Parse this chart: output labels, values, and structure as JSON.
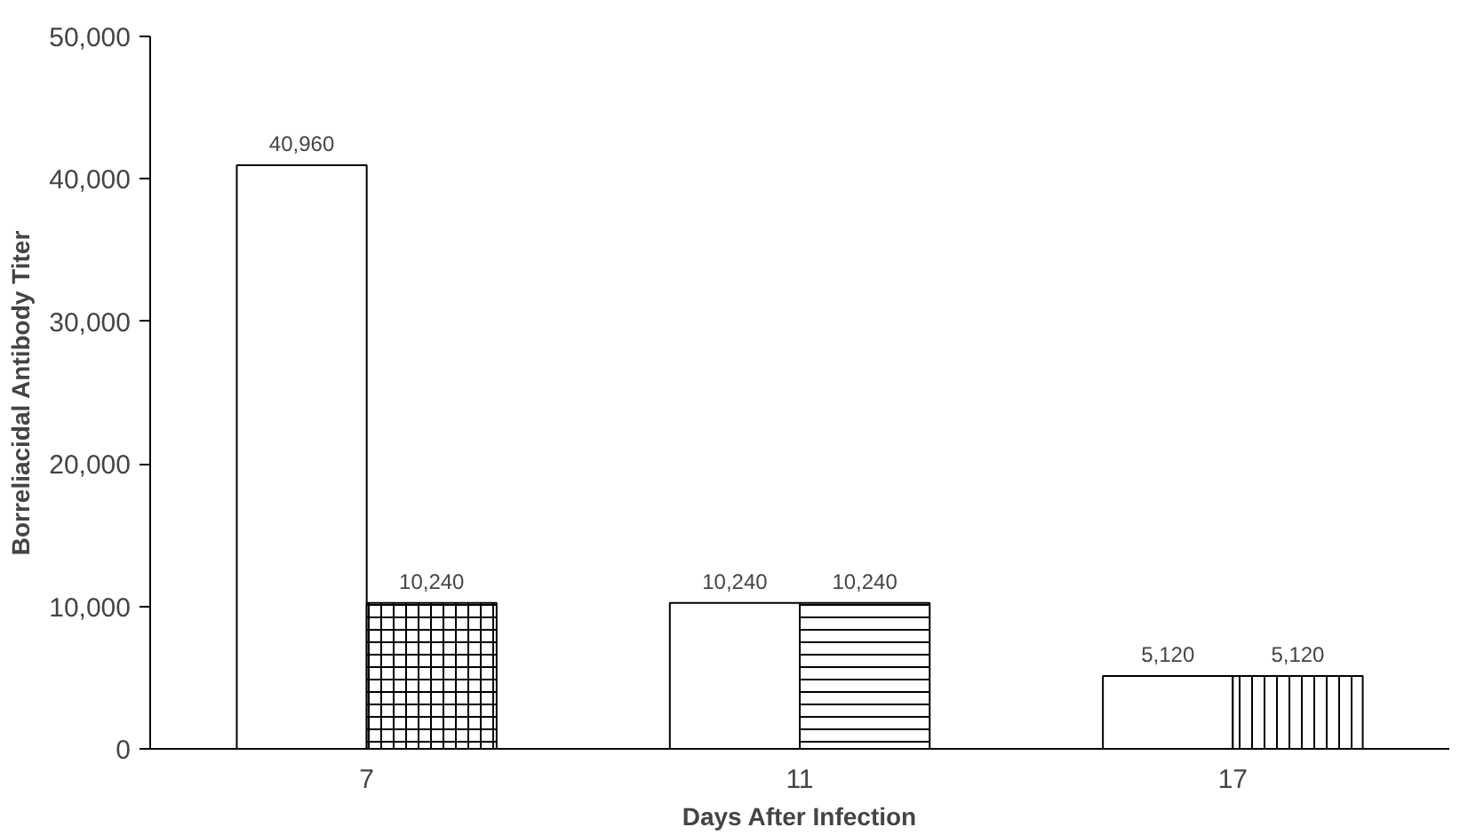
{
  "chart_data": {
    "type": "bar",
    "xlabel": "Days After Infection",
    "ylabel": "Borreliacidal Antibody Titer",
    "categories": [
      "7",
      "11",
      "17"
    ],
    "series": [
      {
        "color": "#ffffff",
        "values": [
          40960,
          10240,
          5120
        ],
        "value_labels": [
          "40,960",
          "10,240",
          "5,120"
        ]
      },
      {
        "color": "#ffffff",
        "values": [
          10240,
          10240,
          5120
        ],
        "value_labels": [
          "10,240",
          "10,240",
          "5,120"
        ]
      }
    ],
    "ylim": [
      0,
      50000
    ],
    "yticks": [
      {
        "value": 0,
        "label": "0"
      },
      {
        "value": 10000,
        "label": "10,000"
      },
      {
        "value": 20000,
        "label": "20,000"
      },
      {
        "value": 30000,
        "label": "30,000"
      },
      {
        "value": 40000,
        "label": "40,000"
      },
      {
        "value": 50000,
        "label": "50,000"
      }
    ],
    "grid": false
  }
}
